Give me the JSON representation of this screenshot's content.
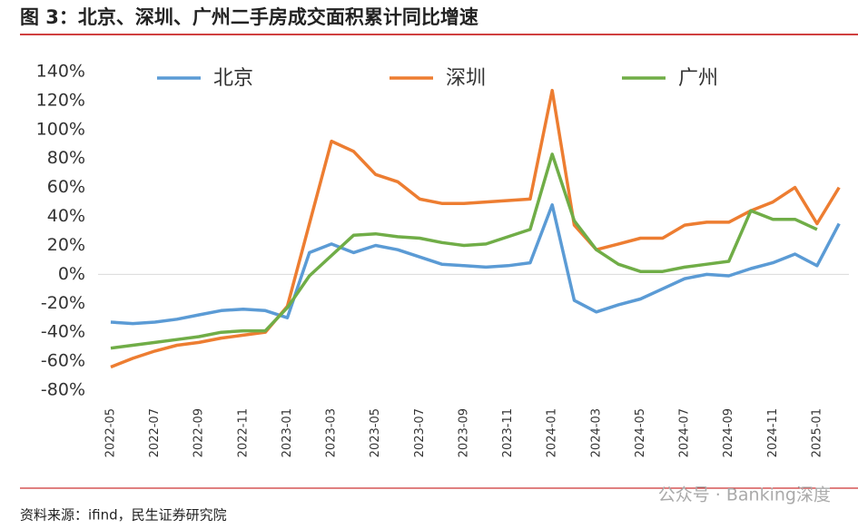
{
  "chart_data": {
    "type": "line",
    "title": "图 3：北京、深圳、广州二手房成交面积累计同比增速",
    "source": "资料来源：ifind，民生证券研究院",
    "watermark": "公众号 · Banking深度",
    "categories": [
      "2022-05",
      null,
      "2022-07",
      null,
      "2022-09",
      null,
      "2022-11",
      null,
      "2023-01",
      null,
      "2023-03",
      null,
      "2023-05",
      null,
      "2023-07",
      null,
      "2023-09",
      null,
      "2023-11",
      null,
      "2024-01",
      null,
      "2024-03",
      null,
      "2024-05",
      null,
      "2024-07",
      null,
      "2024-09",
      null,
      "2024-11",
      null,
      "2025-01",
      null
    ],
    "series": [
      {
        "name": "北京",
        "color": "#5b9bd5",
        "values": [
          -33,
          -34,
          -33,
          -31,
          -28,
          -25,
          -24,
          -25,
          -30,
          15,
          21,
          15,
          20,
          17,
          12,
          7,
          6,
          5,
          6,
          8,
          48,
          -18,
          -26,
          -21,
          -17,
          -10,
          -3,
          0,
          -1,
          4,
          8,
          14,
          6,
          35
        ]
      },
      {
        "name": "深圳",
        "color": "#ed7d31",
        "values": [
          -64,
          -58,
          -53,
          -49,
          -47,
          -44,
          -42,
          -40,
          -22,
          35,
          92,
          85,
          69,
          64,
          52,
          49,
          49,
          50,
          51,
          52,
          127,
          34,
          17,
          21,
          25,
          25,
          34,
          36,
          36,
          44,
          50,
          60,
          35,
          60
        ]
      },
      {
        "name": "广州",
        "color": "#70ad47",
        "values": [
          -51,
          -49,
          -47,
          -45,
          -43,
          -40,
          -39,
          -39,
          -23,
          -1,
          13,
          27,
          28,
          26,
          25,
          22,
          20,
          21,
          26,
          31,
          83,
          37,
          17,
          7,
          2,
          2,
          5,
          7,
          9,
          44,
          38,
          38,
          31,
          null
        ]
      }
    ],
    "ylim": [
      -80,
      140
    ],
    "yticks": [
      {
        "value": -80,
        "label": "-80%"
      },
      {
        "value": -60,
        "label": "-60%"
      },
      {
        "value": -40,
        "label": "-40%"
      },
      {
        "value": -20,
        "label": "-20%"
      },
      {
        "value": 0,
        "label": "0%"
      },
      {
        "value": 20,
        "label": "20%"
      },
      {
        "value": 40,
        "label": "40%"
      },
      {
        "value": 60,
        "label": "60%"
      },
      {
        "value": 80,
        "label": "80%"
      },
      {
        "value": 100,
        "label": "100%"
      },
      {
        "value": 120,
        "label": "120%"
      },
      {
        "value": 140,
        "label": "140%"
      }
    ],
    "legend": "top"
  }
}
